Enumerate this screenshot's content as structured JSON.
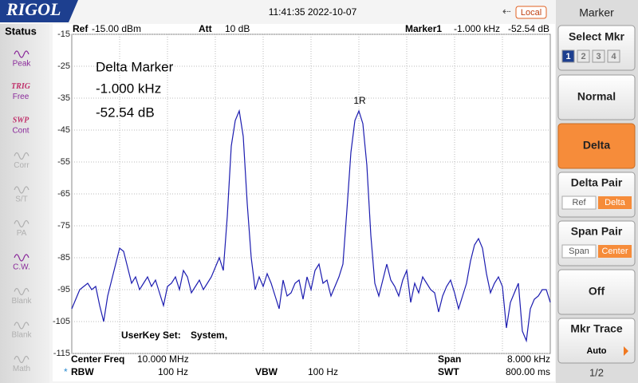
{
  "header": {
    "brand": "RIGOL",
    "time": "11:41:35 2022-10-07",
    "local": "Local"
  },
  "status": {
    "title": "Status",
    "items": [
      [
        "Peak"
      ],
      [
        "TRIG",
        "Free"
      ],
      [
        "SWP",
        "Cont"
      ],
      [
        "Corr"
      ],
      [
        "S/T"
      ],
      [
        "PA"
      ],
      [
        "C.W."
      ],
      [
        "Blank"
      ],
      [
        "Blank"
      ],
      [
        "Math"
      ]
    ]
  },
  "info": {
    "ref_label": "Ref",
    "ref_value": "-15.00 dBm",
    "att_label": "Att",
    "att_value": "10 dB",
    "marker_label": "Marker1",
    "marker_freq": "-1.000 kHz",
    "marker_level": "-52.54 dB"
  },
  "annotation": {
    "title": "Delta Marker",
    "freq": "-1.000 kHz",
    "level": "-52.54 dB",
    "userkey": "UserKey Set:",
    "userkey_value": "System,",
    "marker_tag": "1R"
  },
  "footer": {
    "center_label": "Center Freq",
    "center_value": "10.000 MHz",
    "span_label": "Span",
    "span_value": "8.000 kHz",
    "rbw_label": "RBW",
    "rbw_value": "100 Hz",
    "vbw_label": "VBW",
    "vbw_value": "100 Hz",
    "swt_label": "SWT",
    "swt_value": "800.00 ms"
  },
  "menu": {
    "title": "Marker",
    "select": {
      "label": "Select Mkr",
      "options": [
        "1",
        "2",
        "3",
        "4"
      ]
    },
    "normal": "Normal",
    "delta": "Delta",
    "delta_pair": {
      "label": "Delta Pair",
      "options": [
        "Ref",
        "Delta"
      ]
    },
    "span_pair": {
      "label": "Span Pair",
      "options": [
        "Span",
        "Center"
      ]
    },
    "off": "Off",
    "mkr_trace": {
      "label": "Mkr Trace",
      "value": "Auto"
    },
    "page": "1/2"
  },
  "chart_data": {
    "type": "line",
    "color": "#1c1cb0",
    "grid": true,
    "ylim": [
      -115,
      -15
    ],
    "yticks": [
      -15,
      -25,
      -35,
      -45,
      -55,
      -65,
      -75,
      -85,
      -95,
      -105,
      -115
    ],
    "values": [
      -101,
      -98,
      -95,
      -94,
      -93,
      -95,
      -94,
      -100,
      -105,
      -97,
      -92,
      -87,
      -82,
      -83,
      -88,
      -93,
      -91,
      -95,
      -93,
      -91,
      -94,
      -92,
      -96,
      -100,
      -94,
      -93,
      -91,
      -95,
      -89,
      -91,
      -96,
      -94,
      -92,
      -95,
      -93,
      -91,
      -88,
      -85,
      -89,
      -72,
      -50,
      -42,
      -39,
      -47,
      -68,
      -85,
      -95,
      -91,
      -94,
      -90,
      -93,
      -97,
      -101,
      -92,
      -97,
      -96,
      -93,
      -92,
      -98,
      -91,
      -95,
      -89,
      -87,
      -93,
      -92,
      -97,
      -94,
      -91,
      -87,
      -70,
      -52,
      -42,
      -39,
      -43,
      -56,
      -78,
      -93,
      -97,
      -92,
      -87,
      -92,
      -94,
      -97,
      -92,
      -89,
      -99,
      -93,
      -96,
      -91,
      -93,
      -95,
      -96,
      -102,
      -97,
      -94,
      -92,
      -96,
      -101,
      -97,
      -93,
      -86,
      -81,
      -79,
      -82,
      -90,
      -96,
      -93,
      -91,
      -94,
      -107,
      -99,
      -96,
      -93,
      -108,
      -111,
      -101,
      -98,
      -97,
      -95,
      -95,
      -99
    ]
  }
}
